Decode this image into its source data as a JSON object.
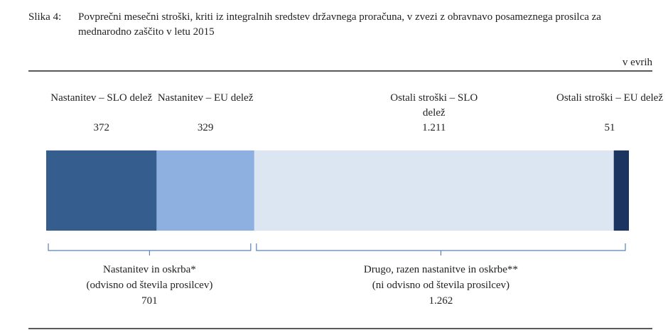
{
  "chart_data": {
    "type": "stacked-bar",
    "label": "Slika 4:",
    "title": "Povprečni mesečni stroški, kriti iz integralnih sredstev državnega proračuna, v zvezi z obravnavo posameznega prosilca za mednarodno zaščito v letu 2015",
    "unit": "v evrih",
    "series": [
      {
        "name": "Nastanitev – SLO delež",
        "color": "#355e8f",
        "values": [
          372
        ]
      },
      {
        "name": "Nastanitev – EU delež",
        "color": "#8db0e0",
        "values": [
          329
        ]
      },
      {
        "name": "Ostali stroški – SLO delež",
        "color": "#dce6f3",
        "values": [
          1211
        ],
        "value_labels": [
          "1.211"
        ]
      },
      {
        "name": "Ostali stroški – EU delež",
        "color": "#1b3560",
        "values": [
          51
        ]
      }
    ],
    "groups": [
      {
        "label": "Nastanitev in oskrba*",
        "note": "(odvisno od števila prosilcev)",
        "value": 701
      },
      {
        "label": "Drugo, razen nastanitve in oskrbe**",
        "note": "(ni odvisno od števila prosilcev)",
        "value": 1262,
        "value_label": "1.262"
      }
    ]
  }
}
